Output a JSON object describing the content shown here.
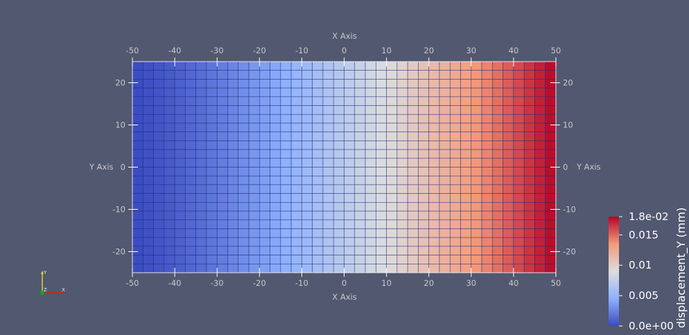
{
  "plot": {
    "x_axis": {
      "title": "X Axis",
      "ticks": [
        -50,
        -40,
        -30,
        -20,
        -10,
        0,
        10,
        20,
        30,
        40,
        50
      ],
      "range": [
        -50,
        50
      ]
    },
    "y_axis": {
      "title": "Y Axis",
      "ticks": [
        20,
        10,
        0,
        -10,
        -20
      ],
      "range": [
        -25,
        25
      ]
    },
    "mesh": {
      "columns": 40,
      "rows": 24,
      "field": "displacement_Y",
      "value_range": [
        0,
        0.018
      ],
      "edge_color": "#1c2a7a"
    }
  },
  "color_legend": {
    "title": "displacement_Y (mm)",
    "labels": [
      "1.8e-02",
      "0.015",
      "0.01",
      "0.005",
      "0.0e+00"
    ],
    "label_values": [
      0.018,
      0.015,
      0.01,
      0.005,
      0
    ],
    "range": [
      0,
      0.018
    ],
    "colormap": "Cool to Warm",
    "colors": [
      "#3b4cc0",
      "#8db0fe",
      "#dddddd",
      "#f49a7b",
      "#b40426"
    ]
  },
  "orientation_triad": {
    "labels": {
      "x": "X",
      "y": "Y",
      "z": "Z"
    },
    "colors": {
      "x": "#d42020",
      "y": "#d8d820",
      "z": "#20a020"
    }
  }
}
